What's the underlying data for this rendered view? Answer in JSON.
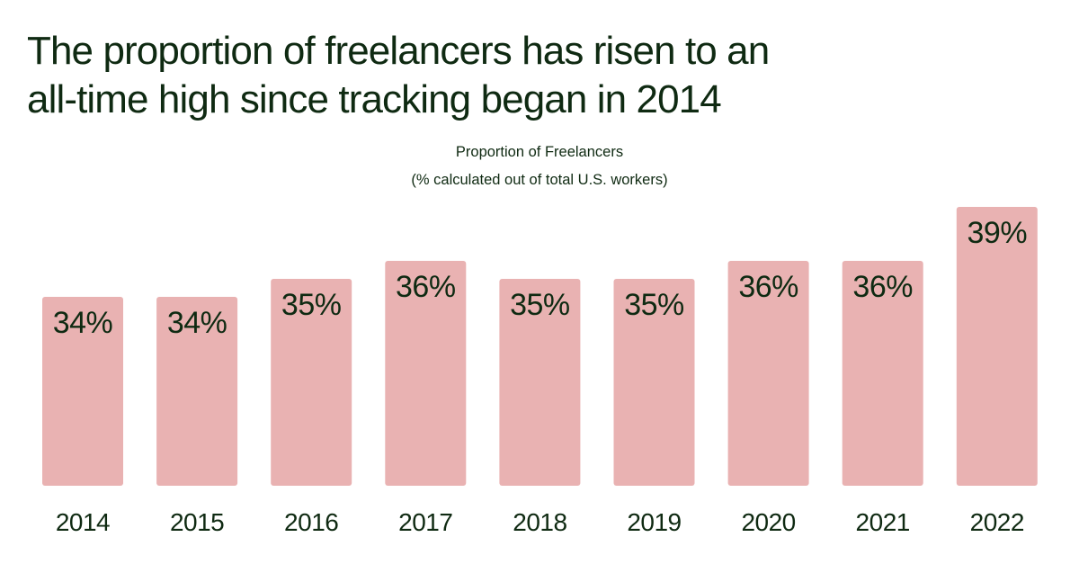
{
  "headline": {
    "line1": "The proportion of freelancers has risen to an",
    "line2": "all-time high since tracking began in 2014"
  },
  "colors": {
    "bar": "#e9b2b2",
    "text": "#0f2a12",
    "background": "#ffffff"
  },
  "chart_data": {
    "type": "bar",
    "title": "Proportion of Freelancers",
    "subtitle": "(% calculated out of total U.S. workers)",
    "categories": [
      "2014",
      "2015",
      "2016",
      "2017",
      "2018",
      "2019",
      "2020",
      "2021",
      "2022"
    ],
    "values": [
      34,
      34,
      35,
      36,
      35,
      35,
      36,
      36,
      39
    ],
    "value_labels": [
      "34%",
      "34%",
      "35%",
      "36%",
      "35%",
      "35%",
      "36%",
      "36%",
      "39%"
    ],
    "xlabel": "",
    "ylabel": "",
    "unit": "%",
    "grid": false,
    "legend": "none"
  }
}
